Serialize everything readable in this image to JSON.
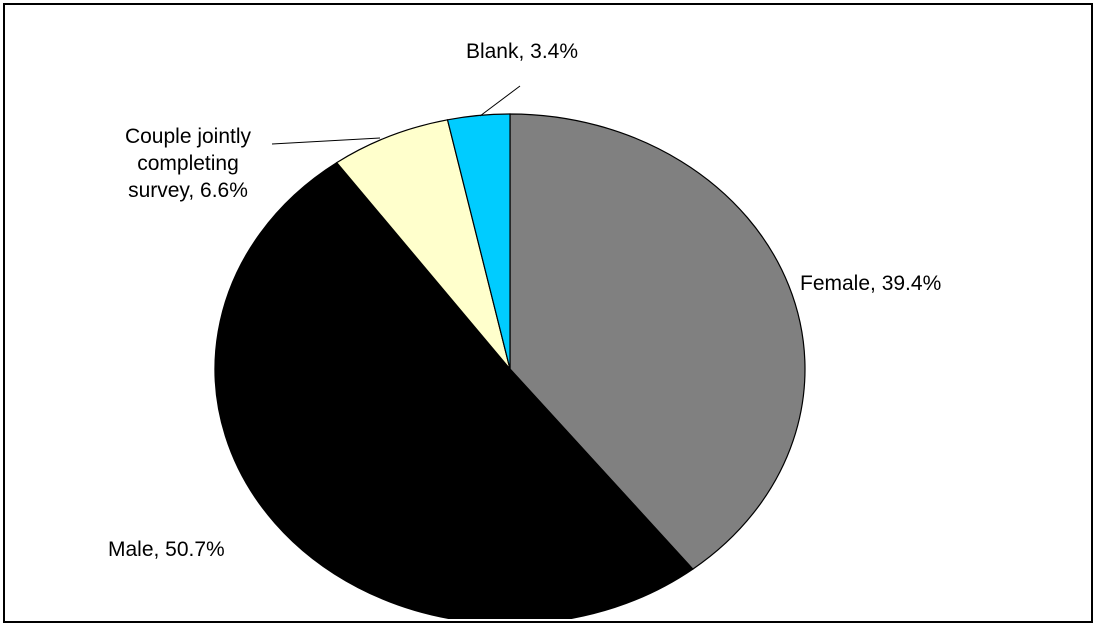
{
  "chart_data": {
    "type": "pie",
    "title": "",
    "slices": [
      {
        "label_lines": [
          "Female, 39.4%"
        ],
        "value": 39.4,
        "color": "#808080"
      },
      {
        "label_lines": [
          "Male, 50.7%"
        ],
        "value": 50.7,
        "color": "#000000"
      },
      {
        "label_lines": [
          "Couple jointly",
          "completing",
          "survey, 6.6%"
        ],
        "value": 6.6,
        "color": "#FFFFCC"
      },
      {
        "label_lines": [
          "Blank, 3.4%"
        ],
        "value": 3.4,
        "color": "#00CCFF"
      }
    ],
    "legend": "none",
    "start_angle_deg": 0,
    "direction": "clockwise"
  }
}
